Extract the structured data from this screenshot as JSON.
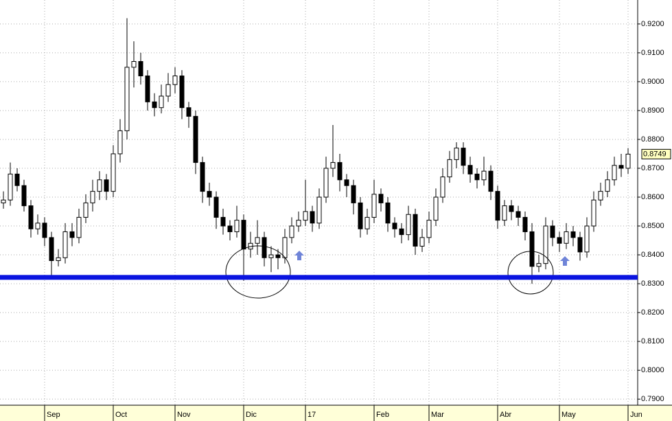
{
  "chart_data": {
    "type": "candlestick",
    "categories": [
      null,
      null,
      null,
      null,
      null,
      null,
      "Sep",
      null,
      null,
      null,
      null,
      null,
      null,
      null,
      null,
      null,
      "Oct",
      null,
      null,
      null,
      null,
      null,
      null,
      null,
      null,
      "Nov",
      null,
      null,
      null,
      null,
      null,
      null,
      null,
      null,
      null,
      "Dic",
      null,
      null,
      null,
      null,
      null,
      null,
      null,
      null,
      "17",
      null,
      null,
      null,
      null,
      null,
      null,
      null,
      null,
      null,
      "Feb",
      null,
      null,
      null,
      null,
      null,
      null,
      null,
      "Mar",
      null,
      null,
      null,
      null,
      null,
      null,
      null,
      null,
      null,
      "Abr",
      null,
      null,
      null,
      null,
      null,
      null,
      null,
      null,
      "May",
      null,
      null,
      null,
      null,
      null,
      null,
      null,
      null,
      null,
      "Jun"
    ],
    "candles": [
      [
        0.858,
        0.862,
        0.856,
        0.859
      ],
      [
        0.859,
        0.872,
        0.857,
        0.868
      ],
      [
        0.868,
        0.87,
        0.862,
        0.864
      ],
      [
        0.864,
        0.866,
        0.855,
        0.857
      ],
      [
        0.857,
        0.859,
        0.846,
        0.849
      ],
      [
        0.849,
        0.854,
        0.847,
        0.851
      ],
      [
        0.851,
        0.853,
        0.843,
        0.846
      ],
      [
        0.846,
        0.848,
        0.833,
        0.838
      ],
      [
        0.838,
        0.842,
        0.836,
        0.839
      ],
      [
        0.839,
        0.851,
        0.837,
        0.848
      ],
      [
        0.848,
        0.851,
        0.843,
        0.846
      ],
      [
        0.846,
        0.856,
        0.844,
        0.853
      ],
      [
        0.853,
        0.861,
        0.851,
        0.858
      ],
      [
        0.858,
        0.866,
        0.855,
        0.862
      ],
      [
        0.862,
        0.869,
        0.859,
        0.866
      ],
      [
        0.866,
        0.868,
        0.859,
        0.862
      ],
      [
        0.862,
        0.878,
        0.86,
        0.875
      ],
      [
        0.875,
        0.887,
        0.872,
        0.883
      ],
      [
        0.883,
        0.922,
        0.88,
        0.905
      ],
      [
        0.905,
        0.914,
        0.898,
        0.907
      ],
      [
        0.907,
        0.91,
        0.899,
        0.902
      ],
      [
        0.902,
        0.904,
        0.89,
        0.893
      ],
      [
        0.893,
        0.896,
        0.888,
        0.891
      ],
      [
        0.891,
        0.899,
        0.889,
        0.895
      ],
      [
        0.895,
        0.903,
        0.893,
        0.899
      ],
      [
        0.899,
        0.905,
        0.896,
        0.902
      ],
      [
        0.902,
        0.904,
        0.887,
        0.891
      ],
      [
        0.891,
        0.893,
        0.884,
        0.888
      ],
      [
        0.888,
        0.89,
        0.868,
        0.872
      ],
      [
        0.872,
        0.874,
        0.858,
        0.862
      ],
      [
        0.862,
        0.865,
        0.857,
        0.86
      ],
      [
        0.86,
        0.862,
        0.849,
        0.853
      ],
      [
        0.853,
        0.856,
        0.847,
        0.85
      ],
      [
        0.85,
        0.852,
        0.845,
        0.848
      ],
      [
        0.848,
        0.857,
        0.846,
        0.852
      ],
      [
        0.852,
        0.854,
        0.831,
        0.842
      ],
      [
        0.842,
        0.848,
        0.839,
        0.844
      ],
      [
        0.844,
        0.852,
        0.84,
        0.846
      ],
      [
        0.846,
        0.848,
        0.836,
        0.839
      ],
      [
        0.839,
        0.843,
        0.834,
        0.84
      ],
      [
        0.84,
        0.842,
        0.835,
        0.839
      ],
      [
        0.839,
        0.849,
        0.837,
        0.846
      ],
      [
        0.846,
        0.853,
        0.844,
        0.85
      ],
      [
        0.85,
        0.855,
        0.848,
        0.852
      ],
      [
        0.852,
        0.866,
        0.85,
        0.855
      ],
      [
        0.855,
        0.857,
        0.848,
        0.851
      ],
      [
        0.851,
        0.863,
        0.849,
        0.86
      ],
      [
        0.86,
        0.874,
        0.858,
        0.87
      ],
      [
        0.87,
        0.885,
        0.867,
        0.872
      ],
      [
        0.872,
        0.875,
        0.862,
        0.866
      ],
      [
        0.866,
        0.868,
        0.86,
        0.864
      ],
      [
        0.864,
        0.866,
        0.854,
        0.858
      ],
      [
        0.858,
        0.86,
        0.846,
        0.849
      ],
      [
        0.849,
        0.856,
        0.847,
        0.853
      ],
      [
        0.853,
        0.866,
        0.851,
        0.861
      ],
      [
        0.861,
        0.863,
        0.855,
        0.858
      ],
      [
        0.858,
        0.86,
        0.848,
        0.851
      ],
      [
        0.851,
        0.853,
        0.846,
        0.849
      ],
      [
        0.849,
        0.851,
        0.844,
        0.847
      ],
      [
        0.847,
        0.857,
        0.845,
        0.854
      ],
      [
        0.854,
        0.856,
        0.84,
        0.843
      ],
      [
        0.843,
        0.849,
        0.841,
        0.846
      ],
      [
        0.846,
        0.855,
        0.844,
        0.852
      ],
      [
        0.852,
        0.863,
        0.85,
        0.86
      ],
      [
        0.86,
        0.87,
        0.858,
        0.867
      ],
      [
        0.867,
        0.876,
        0.865,
        0.873
      ],
      [
        0.873,
        0.879,
        0.87,
        0.877
      ],
      [
        0.877,
        0.879,
        0.868,
        0.871
      ],
      [
        0.871,
        0.874,
        0.865,
        0.868
      ],
      [
        0.868,
        0.87,
        0.863,
        0.866
      ],
      [
        0.866,
        0.874,
        0.864,
        0.869
      ],
      [
        0.869,
        0.871,
        0.859,
        0.862
      ],
      [
        0.862,
        0.864,
        0.849,
        0.852
      ],
      [
        0.852,
        0.859,
        0.85,
        0.857
      ],
      [
        0.857,
        0.859,
        0.852,
        0.855
      ],
      [
        0.855,
        0.857,
        0.85,
        0.853
      ],
      [
        0.853,
        0.855,
        0.845,
        0.848
      ],
      [
        0.848,
        0.851,
        0.83,
        0.836
      ],
      [
        0.836,
        0.84,
        0.834,
        0.837
      ],
      [
        0.837,
        0.853,
        0.835,
        0.85
      ],
      [
        0.85,
        0.852,
        0.843,
        0.846
      ],
      [
        0.846,
        0.848,
        0.841,
        0.844
      ],
      [
        0.844,
        0.851,
        0.842,
        0.848
      ],
      [
        0.848,
        0.85,
        0.843,
        0.846
      ],
      [
        0.846,
        0.848,
        0.838,
        0.841
      ],
      [
        0.841,
        0.853,
        0.839,
        0.85
      ],
      [
        0.85,
        0.862,
        0.848,
        0.859
      ],
      [
        0.859,
        0.865,
        0.857,
        0.862
      ],
      [
        0.862,
        0.869,
        0.86,
        0.866
      ],
      [
        0.866,
        0.874,
        0.864,
        0.871
      ],
      [
        0.871,
        0.875,
        0.867,
        0.87
      ],
      [
        0.87,
        0.877,
        0.868,
        0.8749
      ]
    ],
    "last_value_label": "0.8749",
    "support_level": 0.8322,
    "support_color": "#0a14e0",
    "up_color": "#ffffff",
    "down_color": "#000000",
    "ylim": [
      0.7879,
      0.9283
    ],
    "yticks": [
      {
        "value": 0.79,
        "label": "0.7900"
      },
      {
        "value": 0.8,
        "label": "0.8000"
      },
      {
        "value": 0.81,
        "label": "0.8100"
      },
      {
        "value": 0.82,
        "label": "0.8200"
      },
      {
        "value": 0.83,
        "label": "0.8300"
      },
      {
        "value": 0.84,
        "label": "0.8400"
      },
      {
        "value": 0.85,
        "label": "0.8500"
      },
      {
        "value": 0.86,
        "label": "0.8600"
      },
      {
        "value": 0.87,
        "label": "0.8700"
      },
      {
        "value": 0.88,
        "label": "0.8800"
      },
      {
        "value": 0.89,
        "label": "0.8900"
      },
      {
        "value": 0.9,
        "label": "0.9000"
      },
      {
        "value": 0.91,
        "label": "0.9100"
      },
      {
        "value": 0.92,
        "label": "0.9200"
      }
    ],
    "grid": true
  }
}
